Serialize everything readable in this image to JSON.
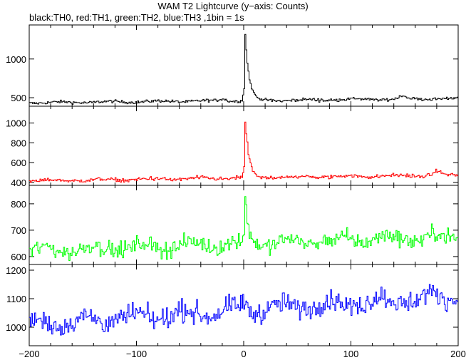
{
  "title": "WAM T2 Lightcurve (y−axis: Counts)",
  "subtitle": "black:TH0, red:TH1, green:TH2, blue:TH3 ,1bin = 1s",
  "chart_data": {
    "type": "line",
    "x_range": [
      -200,
      200
    ],
    "x_ticks": [
      -200,
      -100,
      0,
      100,
      200
    ],
    "x_tick_labels": [
      "−200",
      "−100",
      "0",
      "100",
      "200"
    ],
    "xlabel": "",
    "panels": [
      {
        "color": "#000000",
        "ylim": [
          390,
          1440
        ],
        "yticks": [
          500,
          1000
        ],
        "ytick_labels": [
          "500",
          "1000"
        ],
        "baseline_start": 435,
        "baseline_end": 490,
        "noise": 14,
        "peak_x": 1,
        "peak_height": 1000,
        "decay": 3.5,
        "bumps": [
          {
            "x": -20,
            "h": 30
          },
          {
            "x": 148,
            "h": 35
          }
        ]
      },
      {
        "color": "#ff0000",
        "ylim": [
          370,
          1170
        ],
        "yticks": [
          400,
          600,
          800,
          1000
        ],
        "ytick_labels": [
          "400",
          "600",
          "800",
          "1000"
        ],
        "baseline_start": 415,
        "baseline_end": 475,
        "noise": 14,
        "peak_x": 1,
        "peak_height": 680,
        "decay": 3.2,
        "bumps": [
          {
            "x": 180,
            "h": 40
          }
        ]
      },
      {
        "color": "#00ff00",
        "ylim": [
          570,
          870
        ],
        "yticks": [
          600,
          700,
          800
        ],
        "ytick_labels": [
          "600",
          "700",
          "800"
        ],
        "baseline_start": 622,
        "baseline_end": 678,
        "noise": 22,
        "peak_x": 1,
        "peak_height": 200,
        "decay": 2.5,
        "bumps": []
      },
      {
        "color": "#0000ff",
        "ylim": [
          935,
          1220
        ],
        "yticks": [
          1000,
          1100,
          1200
        ],
        "ytick_labels": [
          "1000",
          "1100",
          "1200"
        ],
        "baseline_start": 1010,
        "baseline_end": 1110,
        "noise": 26,
        "peak_x": -2,
        "peak_height": 40,
        "decay": 3,
        "bumps": []
      }
    ]
  }
}
